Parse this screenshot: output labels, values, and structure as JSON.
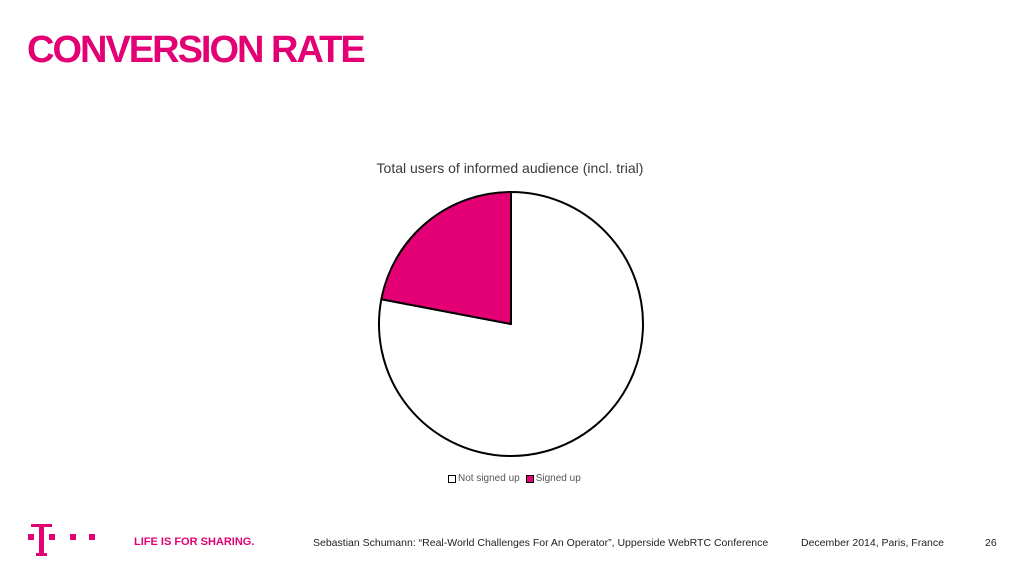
{
  "slide": {
    "title": "CONVERSION RATE"
  },
  "chart_data": {
    "type": "pie",
    "title": "Total users of informed audience (incl. trial)",
    "categories": [
      "Not signed up",
      "Signed up"
    ],
    "values": [
      78,
      22
    ],
    "colors": [
      "#ffffff",
      "#e20074"
    ],
    "legend": "bottom"
  },
  "footer": {
    "logo_icon": "telekom-t-logo-icon",
    "slogan": "LIFE IS FOR SHARING.",
    "presenter": "Sebastian Schumann: “Real-World Challenges For An Operator”, Upperside WebRTC Conference",
    "date": "December 2014, Paris, France",
    "page": "26"
  },
  "colors": {
    "brand": "#e20074",
    "text": "#222222"
  }
}
